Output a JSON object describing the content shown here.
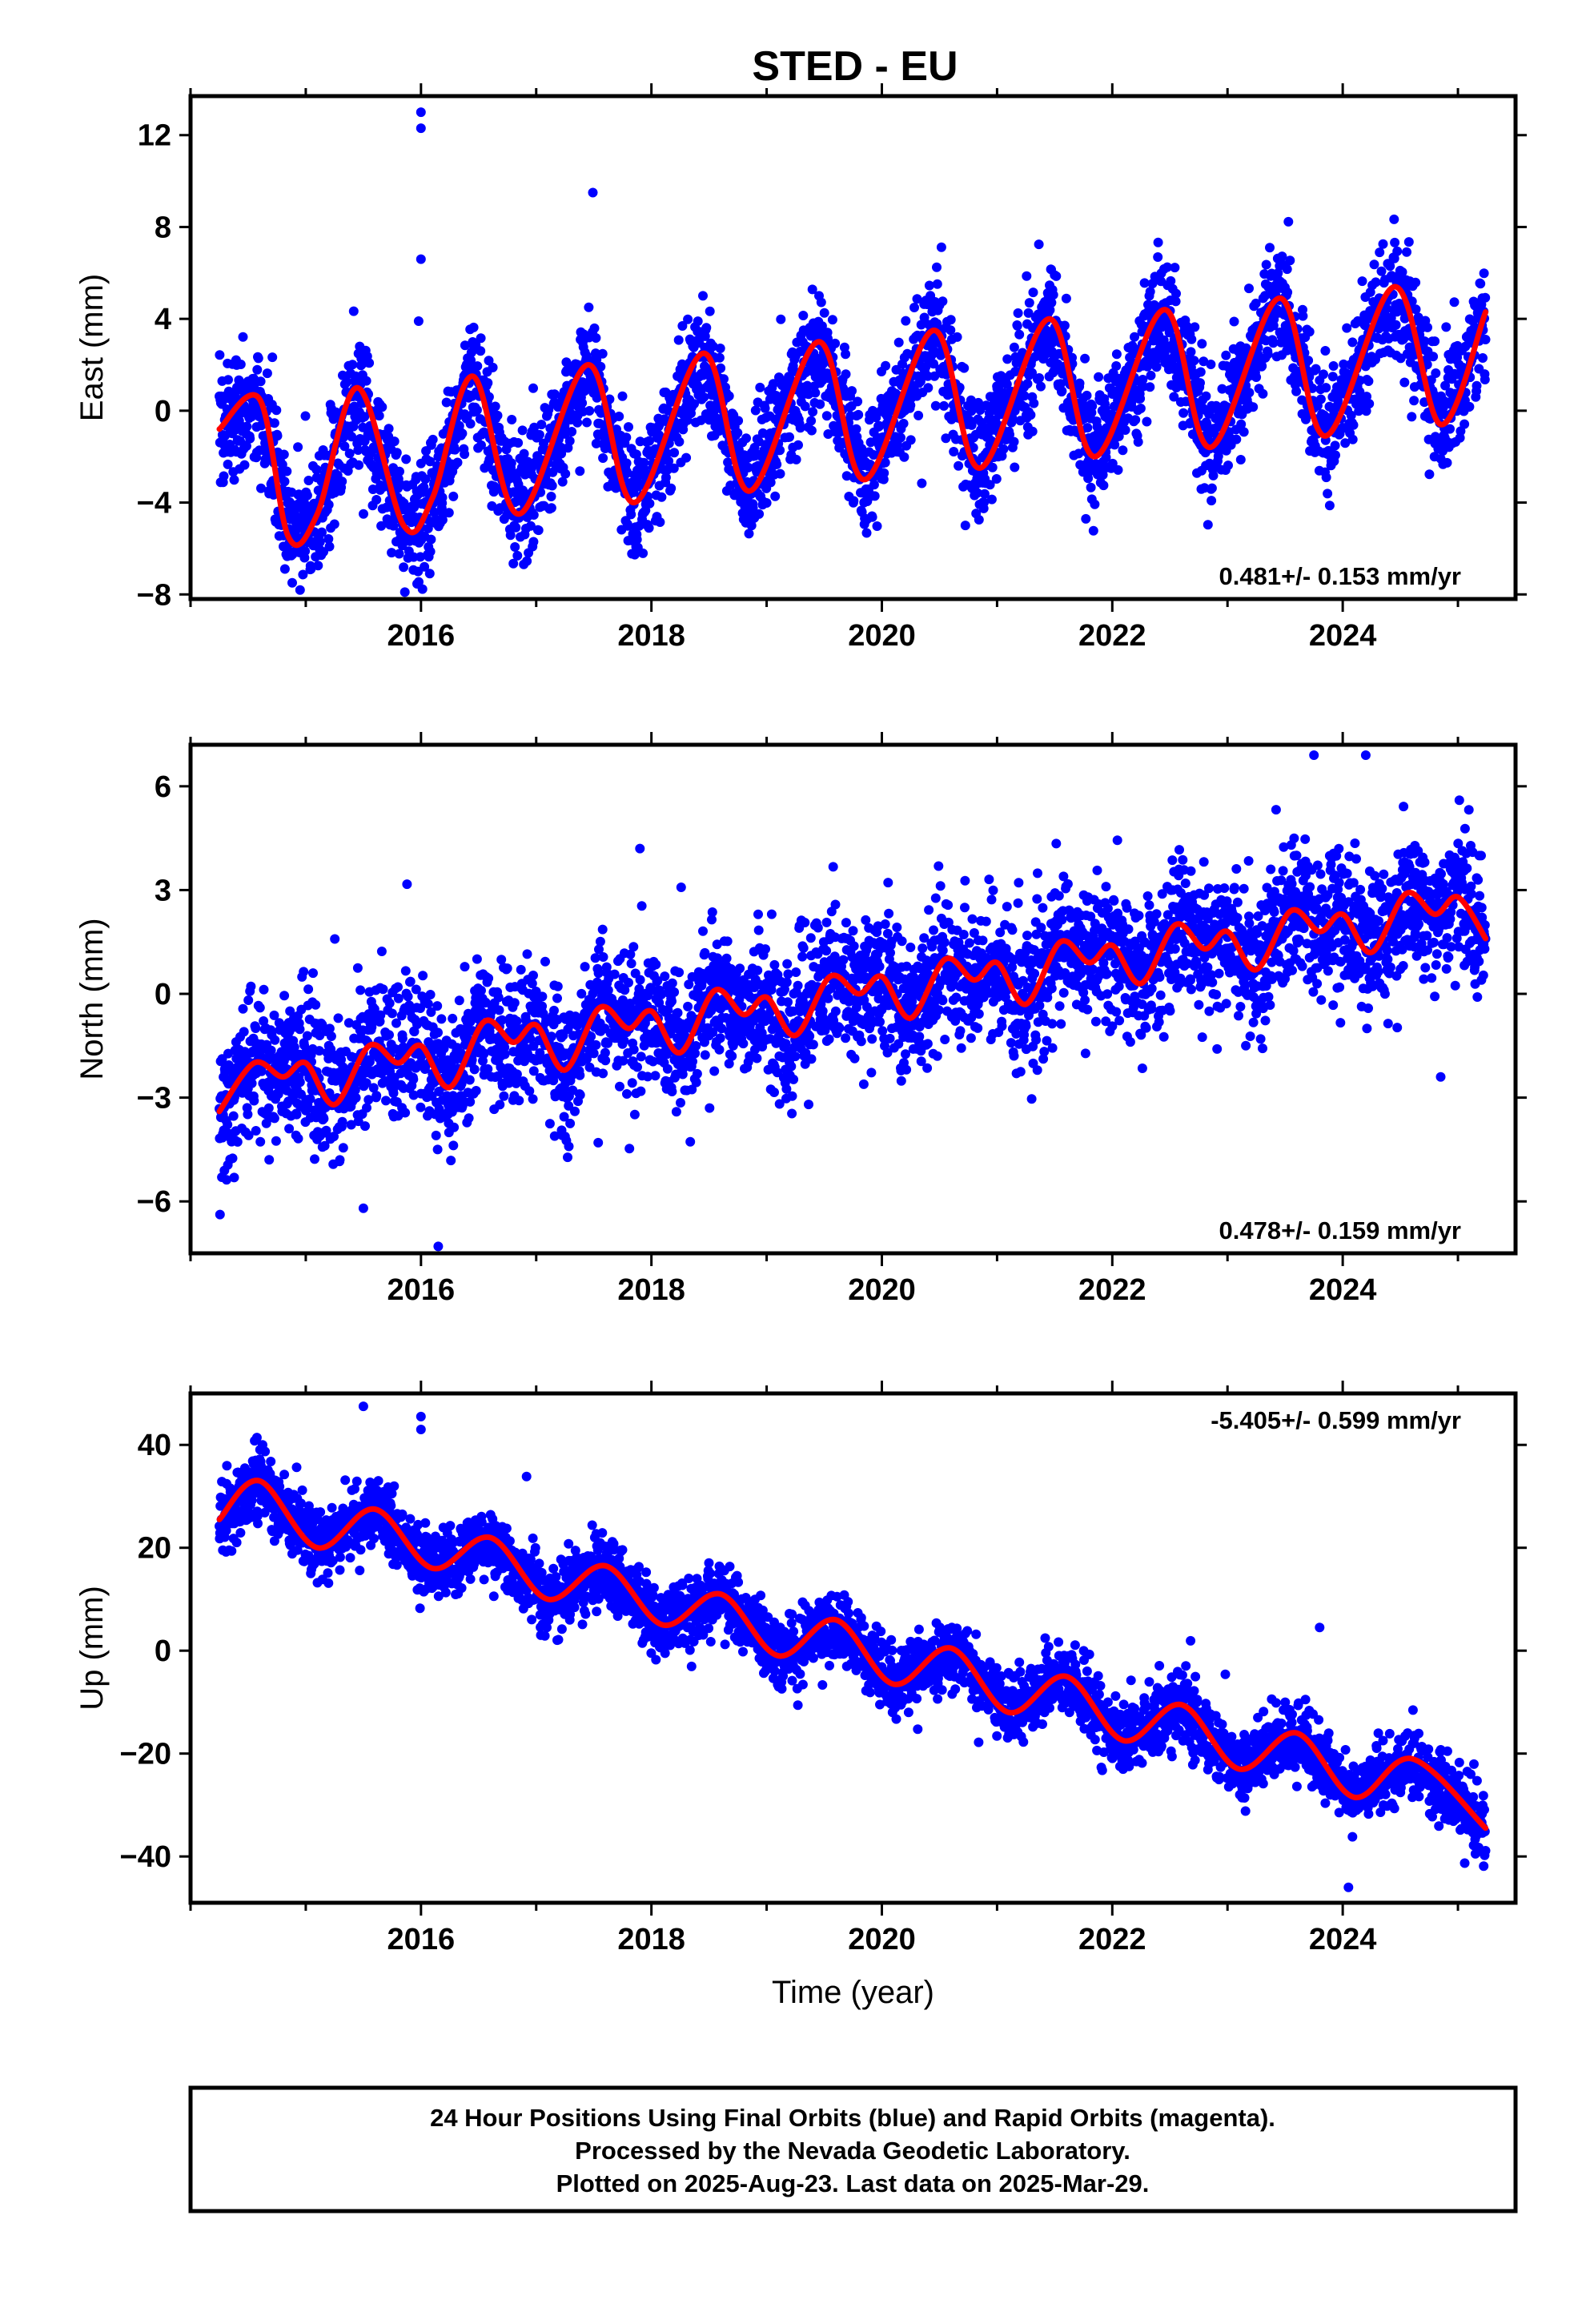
{
  "title": "STED - EU",
  "footer_lines": [
    "24 Hour Positions Using Final Orbits (blue) and Rapid Orbits (magenta).",
    "Processed by the Nevada Geodetic Laboratory.",
    "Plotted on 2025-Aug-23. Last data on 2025-Mar-29."
  ],
  "colors": {
    "points": "#0000ff",
    "model": "#ff0000",
    "frame": "#000000"
  },
  "chart_data": [
    {
      "type": "scatter",
      "component": "east",
      "ylabel": "East (mm)",
      "xlabel": "",
      "rate_label": "0.481+/- 0.153 mm/yr",
      "rate_position": "bottom-right",
      "xlim": [
        2014.0,
        2025.5
      ],
      "ylim": [
        -8.2,
        13.7
      ],
      "xticks": [
        2016,
        2018,
        2020,
        2022,
        2024
      ],
      "yticks": [
        -8,
        -4,
        0,
        4,
        8,
        12
      ],
      "grid": false,
      "series": [
        {
          "kind": "daily positions",
          "x_range": [
            2014.25,
            2025.24
          ],
          "trend_mm_per_yr": 0.481,
          "offset_mm": -1.8,
          "seasonal_amplitude_mm": 3.9,
          "seasonal_peak_year_fraction": 0.45,
          "scatter_mm": 1.3
        },
        {
          "kind": "model fit",
          "x": [
            2014.25,
            2014.6,
            2014.85,
            2015.1,
            2015.45,
            2015.85,
            2016.1,
            2016.45,
            2016.85,
            2017.45,
            2017.85,
            2018.45,
            2018.85,
            2019.45,
            2019.85,
            2020.45,
            2020.85,
            2021.45,
            2021.85,
            2022.45,
            2022.85,
            2023.45,
            2023.85,
            2024.45,
            2024.85,
            2025.24
          ],
          "y": [
            -0.8,
            0.5,
            -5.5,
            -4.5,
            1.0,
            -5.0,
            -3.8,
            1.5,
            -4.5,
            2.0,
            -4.0,
            2.5,
            -3.5,
            3.0,
            -3.0,
            3.5,
            -2.5,
            4.0,
            -2.0,
            4.4,
            -1.6,
            4.9,
            -1.1,
            5.4,
            -0.6,
            4.3
          ]
        }
      ],
      "outliers": [
        {
          "x": 2016.0,
          "y": 13.0
        },
        {
          "x": 2016.0,
          "y": 12.3
        },
        {
          "x": 2016.0,
          "y": 6.6
        },
        {
          "x": 2015.98,
          "y": 3.9
        }
      ]
    },
    {
      "type": "scatter",
      "component": "north",
      "ylabel": "North (mm)",
      "xlabel": "",
      "rate_label": "0.478+/- 0.159 mm/yr",
      "rate_position": "bottom-right",
      "xlim": [
        2014.0,
        2025.5
      ],
      "ylim": [
        -7.5,
        7.2
      ],
      "xticks": [
        2016,
        2018,
        2020,
        2022,
        2024
      ],
      "yticks": [
        -6,
        -3,
        0,
        3,
        6
      ],
      "grid": false,
      "series": [
        {
          "kind": "daily positions",
          "x_range": [
            2014.25,
            2025.24
          ],
          "trend_mm_per_yr": 0.478,
          "offset_mm": -2.9,
          "seasonal_amplitude_mm": 0.8,
          "seasonal_peak_year_fraction": 0.45,
          "scatter_mm": 1.0
        },
        {
          "kind": "model fit",
          "x": [
            2014.25,
            2014.55,
            2014.8,
            2015.0,
            2015.25,
            2015.55,
            2015.8,
            2016.0,
            2016.25,
            2016.55,
            2016.8,
            2017.0,
            2017.25,
            2017.55,
            2017.8,
            2018.0,
            2018.25,
            2018.55,
            2018.8,
            2019.0,
            2019.25,
            2019.55,
            2019.8,
            2020.0,
            2020.25,
            2020.55,
            2020.8,
            2021.0,
            2021.25,
            2021.55,
            2021.8,
            2022.0,
            2022.25,
            2022.55,
            2022.8,
            2023.0,
            2023.25,
            2023.55,
            2023.8,
            2024.0,
            2024.25,
            2024.55,
            2024.8,
            2025.0,
            2025.24
          ],
          "y": [
            -3.4,
            -2.0,
            -2.4,
            -2.0,
            -3.2,
            -1.5,
            -2.0,
            -1.5,
            -2.7,
            -0.8,
            -1.4,
            -0.9,
            -2.2,
            -0.4,
            -1.0,
            -0.5,
            -1.7,
            0.1,
            -0.6,
            -0.1,
            -1.2,
            0.5,
            0.0,
            0.5,
            -0.7,
            1.0,
            0.4,
            0.9,
            -0.3,
            1.5,
            0.9,
            1.4,
            0.3,
            2.0,
            1.3,
            1.8,
            0.7,
            2.4,
            1.8,
            2.3,
            1.2,
            2.9,
            2.3,
            2.8,
            1.6
          ]
        }
      ],
      "outliers": [
        {
          "x": 2017.9,
          "y": 4.2
        },
        {
          "x": 2023.75,
          "y": 6.9
        },
        {
          "x": 2024.2,
          "y": 6.9
        },
        {
          "x": 2016.15,
          "y": -7.3
        },
        {
          "x": 2015.5,
          "y": -6.2
        },
        {
          "x": 2024.85,
          "y": -2.4
        }
      ]
    },
    {
      "type": "scatter",
      "component": "up",
      "ylabel": "Up (mm)",
      "xlabel": "Time (year)",
      "rate_label": "-5.405+/- 0.599 mm/yr",
      "rate_position": "top-right",
      "xlim": [
        2014.0,
        2025.5
      ],
      "ylim": [
        -49,
        50
      ],
      "xticks": [
        2016,
        2018,
        2020,
        2022,
        2024
      ],
      "yticks": [
        -40,
        -20,
        0,
        20,
        40
      ],
      "grid": false,
      "series": [
        {
          "kind": "daily positions",
          "x_range": [
            2014.25,
            2025.24
          ],
          "trend_mm_per_yr": -5.405,
          "offset_mm": 25.0,
          "seasonal_amplitude_mm": 4.5,
          "seasonal_peak_year_fraction": 0.6,
          "scatter_mm": 3.2
        },
        {
          "kind": "model fit",
          "x": [
            2014.25,
            2014.6,
            2015.1,
            2015.6,
            2016.1,
            2016.6,
            2017.1,
            2017.6,
            2018.1,
            2018.6,
            2019.1,
            2019.6,
            2020.1,
            2020.6,
            2021.1,
            2021.6,
            2022.1,
            2022.6,
            2023.1,
            2023.6,
            2024.1,
            2024.6,
            2025.24
          ],
          "y": [
            25.5,
            33.0,
            20.0,
            27.5,
            16.0,
            22.0,
            10.0,
            16.5,
            5.0,
            11.0,
            -1.0,
            6.0,
            -6.5,
            0.5,
            -12.0,
            -5.0,
            -17.5,
            -10.5,
            -23.0,
            -16.0,
            -28.5,
            -21.0,
            -34.5
          ]
        }
      ],
      "outliers": [
        {
          "x": 2015.5,
          "y": 47.5
        },
        {
          "x": 2016.0,
          "y": 45.5
        },
        {
          "x": 2016.0,
          "y": 43.0
        },
        {
          "x": 2023.8,
          "y": 4.5
        },
        {
          "x": 2024.05,
          "y": -46.0
        }
      ]
    }
  ]
}
